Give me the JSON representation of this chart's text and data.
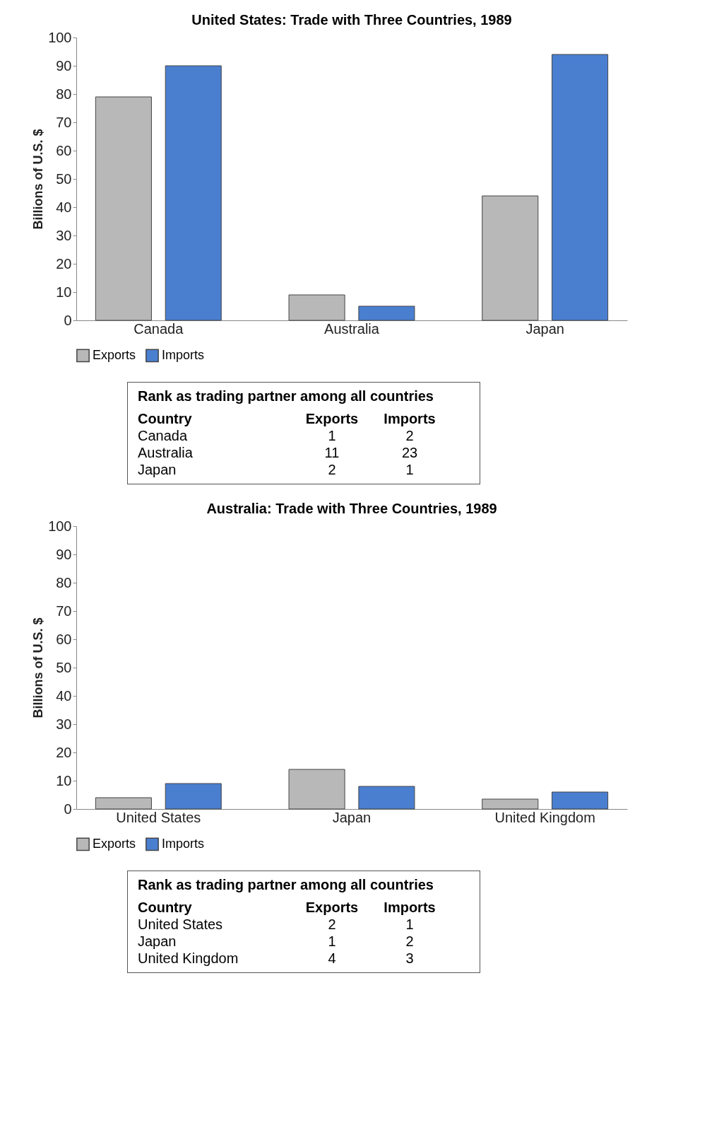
{
  "chart_data": [
    {
      "type": "bar",
      "title": "United States: Trade with Three Countries, 1989",
      "ylabel": "Billions of U.S. $",
      "categories": [
        "Canada",
        "Australia",
        "Japan"
      ],
      "series": [
        {
          "name": "Exports",
          "color": "#b8b8b8",
          "values": [
            79,
            9,
            44
          ]
        },
        {
          "name": "Imports",
          "color": "#4a7fd0",
          "values": [
            90,
            5,
            94
          ]
        }
      ],
      "ylim": [
        0,
        100
      ],
      "yticks": [
        0,
        10,
        20,
        30,
        40,
        50,
        60,
        70,
        80,
        90,
        100
      ],
      "grid": false,
      "legend": "bottom",
      "annotations": [
        "Rank as trading partner among all countries",
        "Country",
        "Exports",
        "Imports",
        "Canada",
        "1",
        "2",
        "Australia",
        "11",
        "23",
        "Japan",
        "2",
        "1"
      ]
    },
    {
      "type": "bar",
      "title": "Australia: Trade with Three Countries, 1989",
      "ylabel": "Billions of U.S. $",
      "categories": [
        "United States",
        "Japan",
        "United Kingdom"
      ],
      "series": [
        {
          "name": "Exports",
          "color": "#b8b8b8",
          "values": [
            4,
            14,
            3.5
          ]
        },
        {
          "name": "Imports",
          "color": "#4a7fd0",
          "values": [
            9,
            8,
            6
          ]
        }
      ],
      "ylim": [
        0,
        100
      ],
      "yticks": [
        0,
        10,
        20,
        30,
        40,
        50,
        60,
        70,
        80,
        90,
        100
      ],
      "grid": false,
      "legend": "bottom",
      "annotations": [
        "Rank as trading partner among all countries",
        "Country",
        "Exports",
        "Imports",
        "United States",
        "2",
        "1",
        "Japan",
        "1",
        "2",
        "United Kingdom",
        "4",
        "3"
      ]
    }
  ]
}
